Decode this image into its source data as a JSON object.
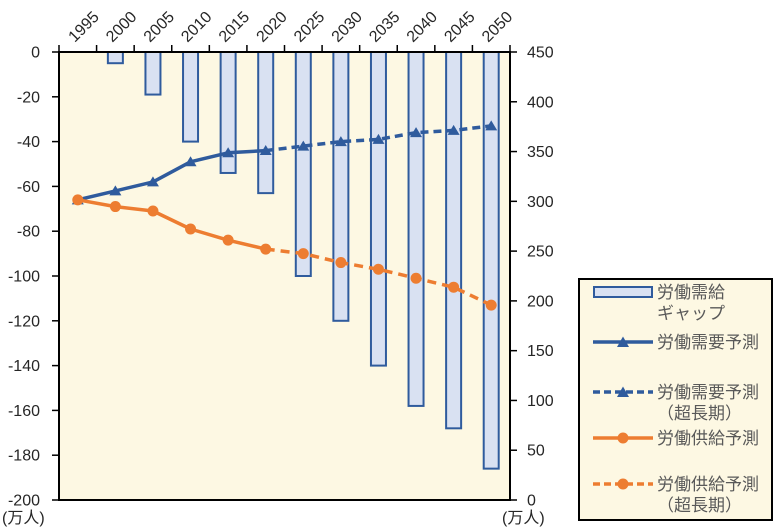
{
  "chart_data": {
    "type": "bar",
    "subtype": "combo-bar-line",
    "title": "",
    "categories": [
      "1995",
      "2000",
      "2005",
      "2010",
      "2015",
      "2020",
      "2025",
      "2030",
      "2035",
      "2040",
      "2045",
      "2050"
    ],
    "bar_series": {
      "name": "労働需給ギャップ",
      "axis": "left",
      "values": [
        null,
        -5,
        -19,
        -40,
        -54,
        -63,
        -100,
        -120,
        -140,
        -158,
        -168,
        -186
      ]
    },
    "line_series": [
      {
        "name": "労働需要予測",
        "name_forecast": "労働需要予測（超長期）",
        "color_key": "blue",
        "marker": "triangle",
        "solid_until_index": 5,
        "values": [
          -66,
          -62,
          -58,
          -49,
          -45,
          -44,
          -42,
          -40,
          -39,
          -36,
          -35,
          -33
        ]
      },
      {
        "name": "労働供給予測",
        "name_forecast": "労働供給予測（超長期）",
        "color_key": "orange",
        "marker": "circle",
        "solid_until_index": 5,
        "values": [
          -66,
          -69,
          -71,
          -79,
          -84,
          -88,
          -90,
          -94,
          -97,
          -101,
          -105,
          -113
        ]
      }
    ],
    "left_axis": {
      "unit": "(万人)",
      "min": -200,
      "max": 0,
      "tick_step": 20,
      "ticks": [
        0,
        -20,
        -40,
        -60,
        -80,
        -100,
        -120,
        -140,
        -160,
        -180,
        -200
      ]
    },
    "right_axis": {
      "unit": "(万人)",
      "min": 0,
      "max": 450,
      "tick_step": 50,
      "ticks": [
        450,
        400,
        350,
        300,
        250,
        200,
        150,
        100,
        50,
        0
      ]
    },
    "grid": "off",
    "legend_position": "right-bottom"
  },
  "legend": {
    "items": [
      {
        "id": "gap",
        "swatch": "bar",
        "color_key": "blue",
        "lines": [
          "労働需給",
          "ギャップ"
        ]
      },
      {
        "id": "demand",
        "swatch": "line-solid",
        "marker": "triangle",
        "color_key": "blue",
        "lines": [
          "労働需要予測"
        ]
      },
      {
        "id": "demand-long",
        "swatch": "line-dashed",
        "marker": "triangle",
        "color_key": "blue",
        "lines": [
          "労働需要予測",
          "（超長期）"
        ]
      },
      {
        "id": "supply",
        "swatch": "line-solid",
        "marker": "circle",
        "color_key": "orange",
        "lines": [
          "労働供給予測"
        ]
      },
      {
        "id": "supply-long",
        "swatch": "line-dashed",
        "marker": "circle",
        "color_key": "orange",
        "lines": [
          "労働供給予測",
          "（超長期）"
        ]
      }
    ]
  },
  "colors": {
    "blue": "#2F5B9D",
    "orange": "#ED7D31",
    "bar_fill": "#D9E1F2",
    "plot_bg": "#FDF8E3",
    "frame": "#000000",
    "axis_text": "#262626",
    "legend_text": "#595959"
  }
}
